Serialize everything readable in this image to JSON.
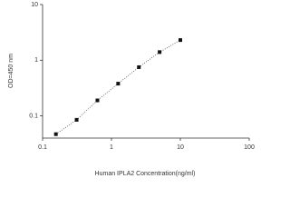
{
  "chart_data": {
    "type": "scatter",
    "x_label": "Human IPLA2 Concentration(ng/ml)",
    "y_label": "OD=450 nm",
    "x": [
      0.156,
      0.312,
      0.625,
      1.25,
      2.5,
      5,
      10
    ],
    "values": [
      0.047,
      0.085,
      0.19,
      0.38,
      0.75,
      1.4,
      2.3
    ],
    "color": "#111111",
    "xlim": [
      0.1,
      100
    ],
    "xticks": [
      0.1,
      1,
      10,
      100
    ],
    "ylim": [
      0.04,
      10
    ],
    "yticks": [
      0.1,
      1,
      10
    ],
    "x_log": true,
    "y_log": true,
    "grid": false,
    "fit_line": "dotted"
  }
}
